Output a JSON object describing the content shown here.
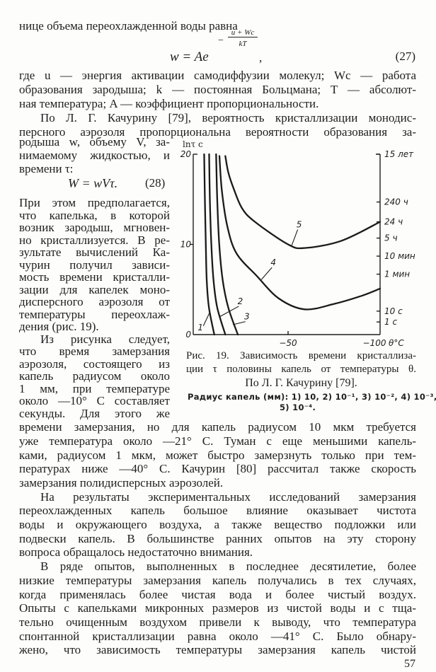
{
  "text": {
    "b0": [
      "нице объема переохлажденной воды равна"
    ],
    "b1": [
      "где u — энергия активации самодиффузии молекул; Wc — работа",
      "образования зародыша; k — постоянная Больцмана; T — абсолют-",
      "ная температура; A — коэффициент пропорциональности.",
      "По Л. Г. Качурину [79], вероятность кристаллизации монодис-",
      "персного аэрозоля пропорциональна вероятности образования за-"
    ],
    "b2": [
      "родыша w, объему V, за-",
      "нимаемому жидкостью, и",
      "времени τ:"
    ],
    "b3": [
      "При этом предполагается,",
      "что капелька, в которой",
      "возник зародыш, мгновен-",
      "но кристаллизуется. В ре-",
      "зультате вычислений Ка-",
      "чурин получил зависи-",
      "мость времени кристалли-",
      "зации для капелек моно-",
      "дисперсного аэрозоля от",
      "температуры переохлаж-",
      "дения (рис. 19).",
      "Из рисунка следует,",
      "что время замерзания",
      "аэрозоля, состоящего из",
      "капель радиусом около",
      "1 мм, при температуре",
      "около —10° С составляет",
      "секунды. Для этого же"
    ],
    "b4": [
      "времени замерзания, но для капель радиусом 10 мкм требуется",
      "уже температура около —21° С. Туман с еще меньшими капель-",
      "ками, радиусом 1 мкм, может быстро замерзнуть только при тем-",
      "пературах ниже —40° С. Качурин [80] рассчитал также скорость",
      "замерзания полидисперсных аэрозолей.",
      "На результаты экспериментальных исследований замерзания",
      "переохлажденных капель большое влияние оказывает чистота",
      "воды и окружающего воздуха, а также вещество подложки или",
      "подвески капель. В большинстве ранних опытов на эту сторону",
      "вопроса обращалось недостаточно внимания.",
      "В ряде опытов, выполненных в последнее десятилетие, более",
      "низкие температуры замерзания капель получались в тех случаях,",
      "когда применялась более чистая вода и более чистый воздух.",
      "Опыты с капельками микронных размеров из чистой воды и с тща-",
      "тельно очищенным воздухом привели к выводу, что температура",
      "спонтанной кристаллизации равна около —41° С. Было обнару-",
      "жено, что зависимость температуры замерзания капель чистой"
    ]
  },
  "equations": {
    "eq27": {
      "lhs": "w = Ae",
      "exp_sign": "−",
      "exp_num": "u + Wc",
      "exp_den": "kT",
      "trail": ",",
      "number": "(27)"
    },
    "eq28": {
      "body": "W = wVτ.",
      "number": "(28)"
    }
  },
  "figure": {
    "caption_lines": [
      "Рис. 19. Зависимость времени кристаллиза-",
      "ции τ половины капель от температуры θ.",
      "По Л. Г. Качурину [79]."
    ],
    "legend_lines": [
      "Радиус капель (мм): 1) 10, 2) 10⁻¹, 3) 10⁻², 4) 10⁻³,",
      "5) 10⁻⁴."
    ]
  },
  "chart_data": {
    "type": "line",
    "ylabel": "lnτ c",
    "xlabel": "θ°C",
    "xlim": [
      0,
      -100
    ],
    "ylim": [
      0,
      20
    ],
    "grid": false,
    "x_ticks": [
      {
        "value": -50,
        "label": "−50"
      },
      {
        "value": -100,
        "label": "−100"
      }
    ],
    "y_ticks": [
      {
        "value": 20,
        "label": "20"
      },
      {
        "value": 10,
        "label": "10"
      },
      {
        "value": 0,
        "label": "0"
      }
    ],
    "right_axis_ticks": [
      {
        "value": 20,
        "label": "15 лет"
      },
      {
        "value": 14.7,
        "label": "240 ч"
      },
      {
        "value": 12.5,
        "label": "24 ч"
      },
      {
        "value": 10.7,
        "label": "5 ч"
      },
      {
        "value": 8.7,
        "label": "10 мин"
      },
      {
        "value": 6.7,
        "label": "1 мин"
      },
      {
        "value": 2.6,
        "label": "10 с"
      },
      {
        "value": 1.4,
        "label": "1 с"
      }
    ],
    "series": [
      {
        "name": "1",
        "points": [
          [
            -4.4,
            20
          ],
          [
            -4.8,
            15
          ],
          [
            -5.3,
            10
          ],
          [
            -5.8,
            6
          ],
          [
            -7.0,
            3
          ],
          [
            -9.9,
            0
          ]
        ],
        "label_at": [
          -2.4,
          0.8
        ],
        "points_to": [
          -7.3,
          2.4
        ]
      },
      {
        "name": "2",
        "points": [
          [
            -7.1,
            20
          ],
          [
            -7.5,
            15
          ],
          [
            -8.3,
            10
          ],
          [
            -9.5,
            6
          ],
          [
            -11.5,
            3
          ],
          [
            -15.9,
            0
          ]
        ],
        "label_at": [
          -24,
          3.3
        ],
        "points_to": [
          -13.0,
          2.0
        ]
      },
      {
        "name": "3",
        "points": [
          [
            -10.9,
            20
          ],
          [
            -11.5,
            15
          ],
          [
            -12.6,
            10
          ],
          [
            -14.5,
            6
          ],
          [
            -17.5,
            3
          ],
          [
            -22.7,
            0
          ]
        ],
        "label_at": [
          -27.6,
          1.6
        ],
        "points_to": [
          -20.0,
          1.1
        ]
      },
      {
        "name": "4",
        "points": [
          [
            -12.7,
            19.8
          ],
          [
            -14,
            16
          ],
          [
            -17,
            12
          ],
          [
            -22,
            9
          ],
          [
            -33,
            6.5
          ],
          [
            -45,
            4
          ],
          [
            -59,
            2.8
          ],
          [
            -75,
            3.4
          ],
          [
            -90,
            4.3
          ],
          [
            -100,
            5.1
          ]
        ],
        "label_at": [
          -42,
          7.6
        ],
        "points_to": [
          -35.5,
          6.1
        ]
      },
      {
        "name": "5",
        "points": [
          [
            -15.9,
            19.8
          ],
          [
            -17.5,
            18
          ],
          [
            -20.4,
            16.2
          ],
          [
            -25,
            14
          ],
          [
            -32,
            12.5
          ],
          [
            -50,
            10
          ],
          [
            -59,
            9.6
          ],
          [
            -79,
            10.4
          ],
          [
            -100,
            12.5
          ]
        ],
        "label_at": [
          -56,
          11.8
        ],
        "points_to": [
          -52,
          9.9
        ]
      }
    ]
  },
  "page_number": "57"
}
